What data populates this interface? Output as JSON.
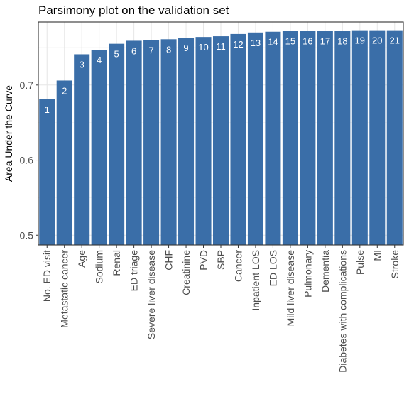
{
  "chart_data": {
    "type": "bar",
    "title": "Parsimony plot on the validation set",
    "xlabel": "",
    "ylabel": "Area Under the Curve",
    "ylim": [
      0.487,
      0.784
    ],
    "yticks": [
      0.5,
      0.6,
      0.7
    ],
    "ytick_labels": [
      "0.5",
      "0.6",
      "0.7"
    ],
    "grid": true,
    "bar_color": "#3a6ea8",
    "categories": [
      "No. ED visit",
      "Metastatic cancer",
      "Age",
      "Sodium",
      "Renal",
      "ED triage",
      "Severe liver disease",
      "CHF",
      "Creatinine",
      "PVD",
      "SBP",
      "Cancer",
      "Inpatient LOS",
      "ED LOS",
      "Mild liver disease",
      "Pulmonary",
      "Dementia",
      "Diabetes with complications",
      "Pulse",
      "MI",
      "Stroke"
    ],
    "bar_labels": [
      "1",
      "2",
      "3",
      "4",
      "5",
      "6",
      "7",
      "8",
      "9",
      "10",
      "11",
      "12",
      "13",
      "14",
      "15",
      "16",
      "17",
      "18",
      "19",
      "20",
      "21"
    ],
    "values": [
      0.681,
      0.706,
      0.741,
      0.747,
      0.755,
      0.759,
      0.76,
      0.761,
      0.763,
      0.764,
      0.765,
      0.768,
      0.77,
      0.771,
      0.772,
      0.772,
      0.772,
      0.772,
      0.773,
      0.773,
      0.773
    ]
  }
}
